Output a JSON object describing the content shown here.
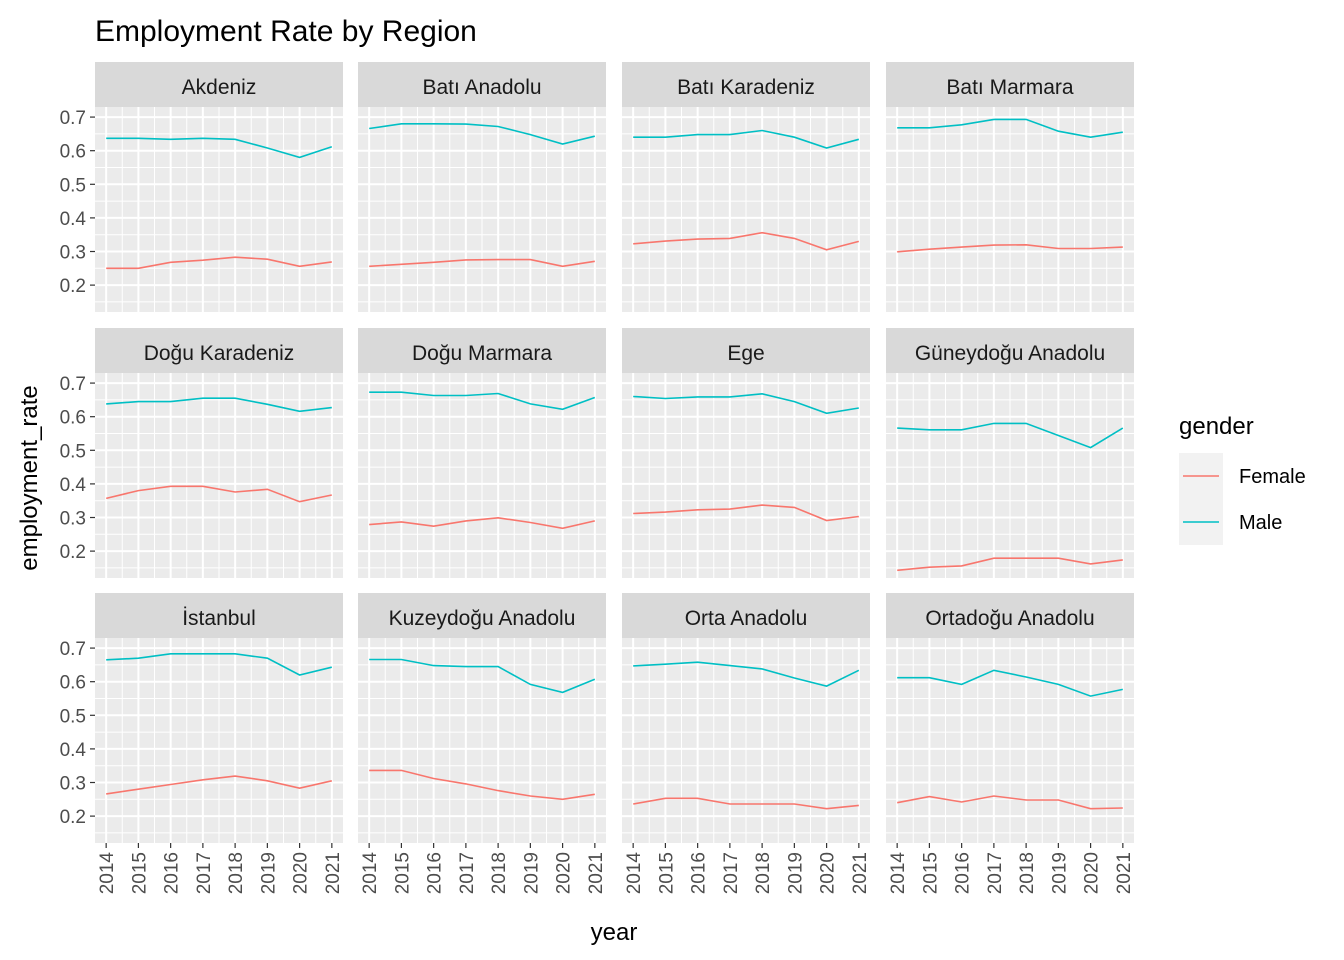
{
  "chart_data": {
    "type": "line",
    "title": "Employment Rate by Region",
    "xlabel": "year",
    "ylabel": "employment_rate",
    "x": [
      2014,
      2015,
      2016,
      2017,
      2018,
      2019,
      2020,
      2021
    ],
    "y_ticks": [
      0.2,
      0.3,
      0.4,
      0.5,
      0.6,
      0.7
    ],
    "ylim": [
      0.12,
      0.73
    ],
    "grid": true,
    "legend": {
      "title": "gender",
      "position": "right",
      "entries": [
        {
          "label": "Female",
          "color": "#F8766D"
        },
        {
          "label": "Male",
          "color": "#00BFC4"
        }
      ]
    },
    "colors": {
      "Female": "#F8766D",
      "Male": "#00BFC4",
      "panel_bg": "#EBEBEB",
      "strip_bg": "#D9D9D9",
      "grid": "#FFFFFF"
    },
    "panels": [
      {
        "region": "Akdeniz",
        "series": [
          {
            "name": "Female",
            "values": [
              0.25,
              0.25,
              0.268,
              0.274,
              0.283,
              0.277,
              0.256,
              0.269
            ]
          },
          {
            "name": "Male",
            "values": [
              0.637,
              0.637,
              0.634,
              0.637,
              0.634,
              0.608,
              0.58,
              0.612
            ]
          }
        ]
      },
      {
        "region": "Batı Anadolu",
        "series": [
          {
            "name": "Female",
            "values": [
              0.256,
              0.262,
              0.268,
              0.275,
              0.276,
              0.276,
              0.256,
              0.271
            ]
          },
          {
            "name": "Male",
            "values": [
              0.666,
              0.68,
              0.68,
              0.679,
              0.672,
              0.648,
              0.62,
              0.643
            ]
          }
        ]
      },
      {
        "region": "Batı Karadeniz",
        "series": [
          {
            "name": "Female",
            "values": [
              0.323,
              0.331,
              0.337,
              0.339,
              0.356,
              0.339,
              0.305,
              0.33
            ]
          },
          {
            "name": "Male",
            "values": [
              0.64,
              0.64,
              0.648,
              0.648,
              0.66,
              0.64,
              0.608,
              0.634
            ]
          }
        ]
      },
      {
        "region": "Batı Marmara",
        "series": [
          {
            "name": "Female",
            "values": [
              0.299,
              0.307,
              0.313,
              0.319,
              0.32,
              0.309,
              0.309,
              0.313
            ]
          },
          {
            "name": "Male",
            "values": [
              0.668,
              0.668,
              0.677,
              0.693,
              0.693,
              0.658,
              0.64,
              0.655
            ]
          }
        ]
      },
      {
        "region": "Doğu Karadeniz",
        "series": [
          {
            "name": "Female",
            "values": [
              0.357,
              0.38,
              0.393,
              0.393,
              0.376,
              0.384,
              0.347,
              0.367
            ]
          },
          {
            "name": "Male",
            "values": [
              0.638,
              0.645,
              0.645,
              0.655,
              0.655,
              0.637,
              0.616,
              0.627
            ]
          }
        ]
      },
      {
        "region": "Doğu Marmara",
        "series": [
          {
            "name": "Female",
            "values": [
              0.279,
              0.287,
              0.274,
              0.29,
              0.299,
              0.285,
              0.268,
              0.29
            ]
          },
          {
            "name": "Male",
            "values": [
              0.673,
              0.673,
              0.663,
              0.663,
              0.669,
              0.638,
              0.622,
              0.657
            ]
          }
        ]
      },
      {
        "region": "Ege",
        "series": [
          {
            "name": "Female",
            "values": [
              0.312,
              0.316,
              0.323,
              0.325,
              0.337,
              0.33,
              0.291,
              0.303
            ]
          },
          {
            "name": "Male",
            "values": [
              0.66,
              0.654,
              0.659,
              0.659,
              0.668,
              0.645,
              0.61,
              0.626
            ]
          }
        ]
      },
      {
        "region": "Güneydoğu Anadolu",
        "series": [
          {
            "name": "Female",
            "values": [
              0.143,
              0.152,
              0.156,
              0.179,
              0.179,
              0.179,
              0.162,
              0.174
            ]
          },
          {
            "name": "Male",
            "values": [
              0.566,
              0.561,
              0.561,
              0.58,
              0.58,
              0.544,
              0.508,
              0.566
            ]
          }
        ]
      },
      {
        "region": "İstanbul",
        "series": [
          {
            "name": "Female",
            "values": [
              0.266,
              0.28,
              0.294,
              0.308,
              0.319,
              0.305,
              0.283,
              0.305
            ]
          },
          {
            "name": "Male",
            "values": [
              0.665,
              0.67,
              0.683,
              0.683,
              0.683,
              0.67,
              0.62,
              0.643
            ]
          }
        ]
      },
      {
        "region": "Kuzeydoğu Anadolu",
        "series": [
          {
            "name": "Female",
            "values": [
              0.336,
              0.336,
              0.312,
              0.296,
              0.276,
              0.26,
              0.25,
              0.265
            ]
          },
          {
            "name": "Male",
            "values": [
              0.666,
              0.666,
              0.648,
              0.645,
              0.645,
              0.592,
              0.568,
              0.607
            ]
          }
        ]
      },
      {
        "region": "Orta Anadolu",
        "series": [
          {
            "name": "Female",
            "values": [
              0.236,
              0.253,
              0.253,
              0.236,
              0.236,
              0.236,
              0.222,
              0.232
            ]
          },
          {
            "name": "Male",
            "values": [
              0.647,
              0.652,
              0.658,
              0.648,
              0.638,
              0.611,
              0.587,
              0.634
            ]
          }
        ]
      },
      {
        "region": "Ortadoğu Anadolu",
        "series": [
          {
            "name": "Female",
            "values": [
              0.24,
              0.258,
              0.242,
              0.26,
              0.248,
              0.248,
              0.222,
              0.224
            ]
          },
          {
            "name": "Male",
            "values": [
              0.612,
              0.612,
              0.592,
              0.634,
              0.614,
              0.592,
              0.557,
              0.577
            ]
          }
        ]
      }
    ]
  }
}
